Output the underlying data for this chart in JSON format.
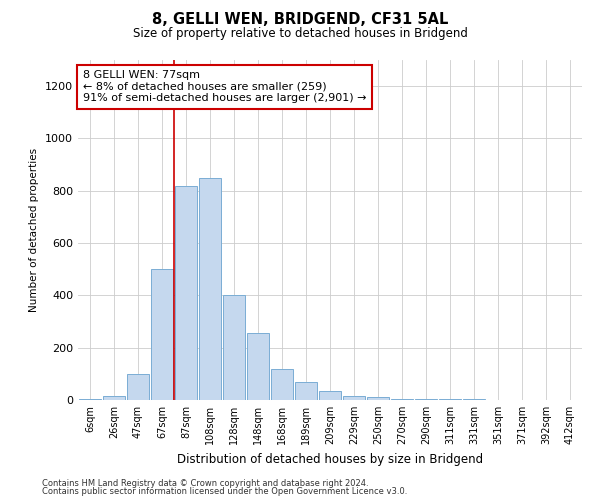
{
  "title1": "8, GELLI WEN, BRIDGEND, CF31 5AL",
  "title2": "Size of property relative to detached houses in Bridgend",
  "xlabel": "Distribution of detached houses by size in Bridgend",
  "ylabel": "Number of detached properties",
  "categories": [
    "6sqm",
    "26sqm",
    "47sqm",
    "67sqm",
    "87sqm",
    "108sqm",
    "128sqm",
    "148sqm",
    "168sqm",
    "189sqm",
    "209sqm",
    "229sqm",
    "250sqm",
    "270sqm",
    "290sqm",
    "311sqm",
    "331sqm",
    "351sqm",
    "371sqm",
    "392sqm",
    "412sqm"
  ],
  "values": [
    5,
    15,
    100,
    500,
    820,
    850,
    400,
    255,
    120,
    70,
    35,
    15,
    10,
    3,
    3,
    2,
    2,
    1,
    1,
    1,
    1
  ],
  "bar_color": "#c5d8ee",
  "bar_edge_color": "#7aadd4",
  "vline_x_pos": 3.5,
  "vline_color": "#cc0000",
  "annotation_line1": "8 GELLI WEN: 77sqm",
  "annotation_line2": "← 8% of detached houses are smaller (259)",
  "annotation_line3": "91% of semi-detached houses are larger (2,901) →",
  "annotation_box_facecolor": "#ffffff",
  "annotation_box_edgecolor": "#cc0000",
  "ylim": [
    0,
    1300
  ],
  "yticks": [
    0,
    200,
    400,
    600,
    800,
    1000,
    1200
  ],
  "grid_color": "#cccccc",
  "footer1": "Contains HM Land Registry data © Crown copyright and database right 2024.",
  "footer2": "Contains public sector information licensed under the Open Government Licence v3.0.",
  "fig_bg": "#ffffff",
  "plot_bg": "#ffffff"
}
